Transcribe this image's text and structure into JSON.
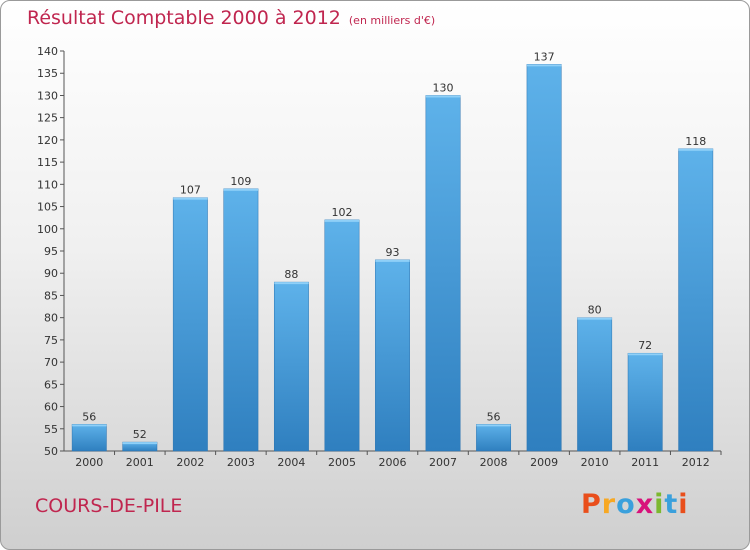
{
  "header": {
    "title": "Résultat Comptable 2000 à 2012",
    "subtitle": "(en milliers d'€)"
  },
  "footer": {
    "city": "COURS-DE-PILE",
    "logo": "Proxiti",
    "logo_colors": [
      "#e94e1b",
      "#f7a823",
      "#3aa0dc",
      "#d8127b",
      "#7cb82f",
      "#3aa0dc",
      "#e94e1b"
    ]
  },
  "chart_data": {
    "type": "bar",
    "title": "Résultat Comptable 2000 à 2012",
    "subtitle": "(en milliers d'€)",
    "categories": [
      "2000",
      "2001",
      "2002",
      "2003",
      "2004",
      "2005",
      "2006",
      "2007",
      "2008",
      "2009",
      "2010",
      "2011",
      "2012"
    ],
    "values": [
      56,
      52,
      107,
      109,
      88,
      102,
      93,
      130,
      56,
      137,
      80,
      72,
      118
    ],
    "ylim": [
      50,
      140
    ],
    "yticks": [
      50,
      55,
      60,
      65,
      70,
      75,
      80,
      85,
      90,
      95,
      100,
      105,
      110,
      115,
      120,
      125,
      130,
      135,
      140
    ],
    "grid": false,
    "bar_color": "#4a9fdc"
  }
}
